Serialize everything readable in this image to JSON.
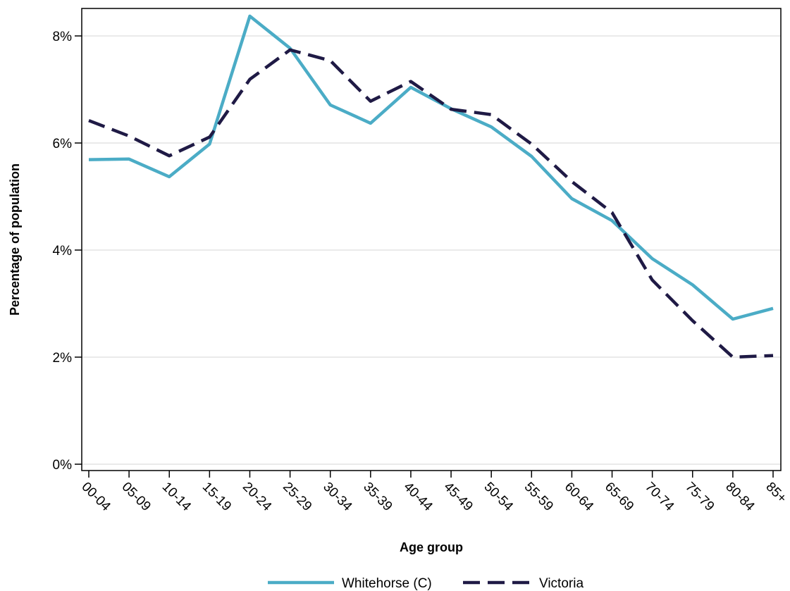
{
  "chart_data": {
    "type": "line",
    "categories": [
      "00-04",
      "05-09",
      "10-14",
      "15-19",
      "20-24",
      "25-29",
      "30-34",
      "35-39",
      "40-44",
      "45-49",
      "50-54",
      "55-59",
      "60-64",
      "65-69",
      "70-74",
      "75-79",
      "80-84",
      "85+"
    ],
    "series": [
      {
        "name": "Whitehorse (C)",
        "color": "#4bacc6",
        "dash": "solid",
        "values": [
          5.69,
          5.7,
          5.37,
          5.98,
          8.37,
          7.77,
          6.71,
          6.37,
          7.04,
          6.64,
          6.3,
          5.75,
          4.96,
          4.55,
          3.84,
          3.35,
          2.71,
          2.91
        ]
      },
      {
        "name": "Victoria",
        "color": "#1f1a45",
        "dash": "dashed",
        "values": [
          6.42,
          6.13,
          5.76,
          6.11,
          7.19,
          7.74,
          7.54,
          6.78,
          7.15,
          6.63,
          6.53,
          5.98,
          5.28,
          4.7,
          3.44,
          2.68,
          2.0,
          2.03
        ]
      }
    ],
    "title": "",
    "xlabel": "Age group",
    "ylabel": "Percentage of population",
    "ylim": [
      0,
      8.8
    ],
    "yticks": [
      0,
      2,
      4,
      6,
      8
    ],
    "ytick_labels": [
      "0%",
      "2%",
      "4%",
      "6%",
      "8%"
    ],
    "grid": "horizontal",
    "legend_position": "bottom"
  }
}
